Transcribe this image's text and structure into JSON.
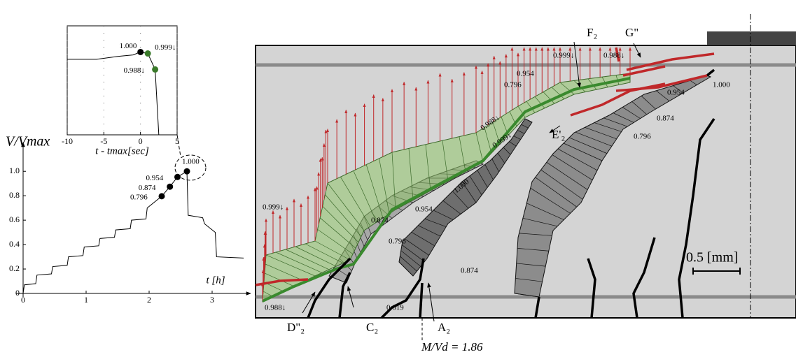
{
  "chart_data": [
    {
      "type": "line",
      "xlabel": "t [h]",
      "ylabel": "V/Vmax",
      "x": [
        0,
        0.02,
        0.2,
        0.22,
        0.45,
        0.47,
        0.7,
        0.72,
        0.95,
        0.97,
        1.2,
        1.22,
        1.45,
        1.47,
        1.7,
        1.72,
        1.95,
        1.97,
        2.2,
        2.33,
        2.45,
        2.6,
        2.62,
        2.85,
        2.88,
        3.05,
        3.07,
        3.5
      ],
      "values": [
        0,
        0.07,
        0.08,
        0.15,
        0.16,
        0.22,
        0.23,
        0.3,
        0.31,
        0.38,
        0.39,
        0.45,
        0.46,
        0.52,
        0.53,
        0.6,
        0.61,
        0.7,
        0.796,
        0.874,
        0.954,
        1.0,
        0.64,
        0.62,
        0.57,
        0.5,
        0.3,
        0.29
      ],
      "color": "#000000",
      "points": {
        "x": [
          2.2,
          2.33,
          2.45,
          2.6
        ],
        "values": [
          0.796,
          0.874,
          0.954,
          1.0
        ],
        "value_labels": [
          "0.796",
          "0.874",
          "0.954",
          "1.000"
        ],
        "colors": [
          "#000000",
          "#000000",
          "#000000",
          "#000000"
        ]
      },
      "xlim": [
        0,
        3.5
      ],
      "ylim": [
        0,
        1.15
      ],
      "xticks": [
        0,
        1,
        2,
        3
      ],
      "yticks": [
        0,
        0.2,
        0.4,
        0.6,
        0.8,
        {
          "value": 1,
          "label": "1.0"
        }
      ]
    },
    {
      "type": "line",
      "xlabel": "t - tmax[sec]",
      "x": [
        -10,
        -6,
        -3,
        -1,
        0,
        1,
        2,
        2.5
      ],
      "values": [
        0.995,
        0.995,
        0.997,
        0.998,
        1.0,
        0.999,
        0.988,
        0.943
      ],
      "color": "#000000",
      "points": {
        "x": [
          0,
          1,
          2
        ],
        "values": [
          1.0,
          0.999,
          0.988
        ],
        "value_labels": [
          "1.000",
          "0.999↓",
          "0.988↓"
        ],
        "colors": [
          "#000000",
          "#3a7a2a",
          "#3a7a2a"
        ]
      },
      "xlim": [
        -10,
        5
      ],
      "ylim": [
        0.943,
        1.018
      ],
      "xticks": [
        -10,
        -5,
        0,
        5
      ],
      "grid": true
    }
  ],
  "diagram": {
    "annotations": [
      "F₂",
      "G\"",
      "0.999↓",
      "0.988↓",
      "0.954",
      "0.796",
      "0.988↓",
      "0.999↓",
      "E'₂",
      "0.954",
      "1.000",
      "0.874",
      "0.796",
      "1.000",
      "0.954",
      "0.874",
      "0.796",
      "0.999↓",
      "0.874",
      "0.988↓",
      "0.619",
      "D\"₂",
      "C₂",
      "A₂",
      "M/Vd = 1.86",
      "0.5 [mm]"
    ]
  }
}
